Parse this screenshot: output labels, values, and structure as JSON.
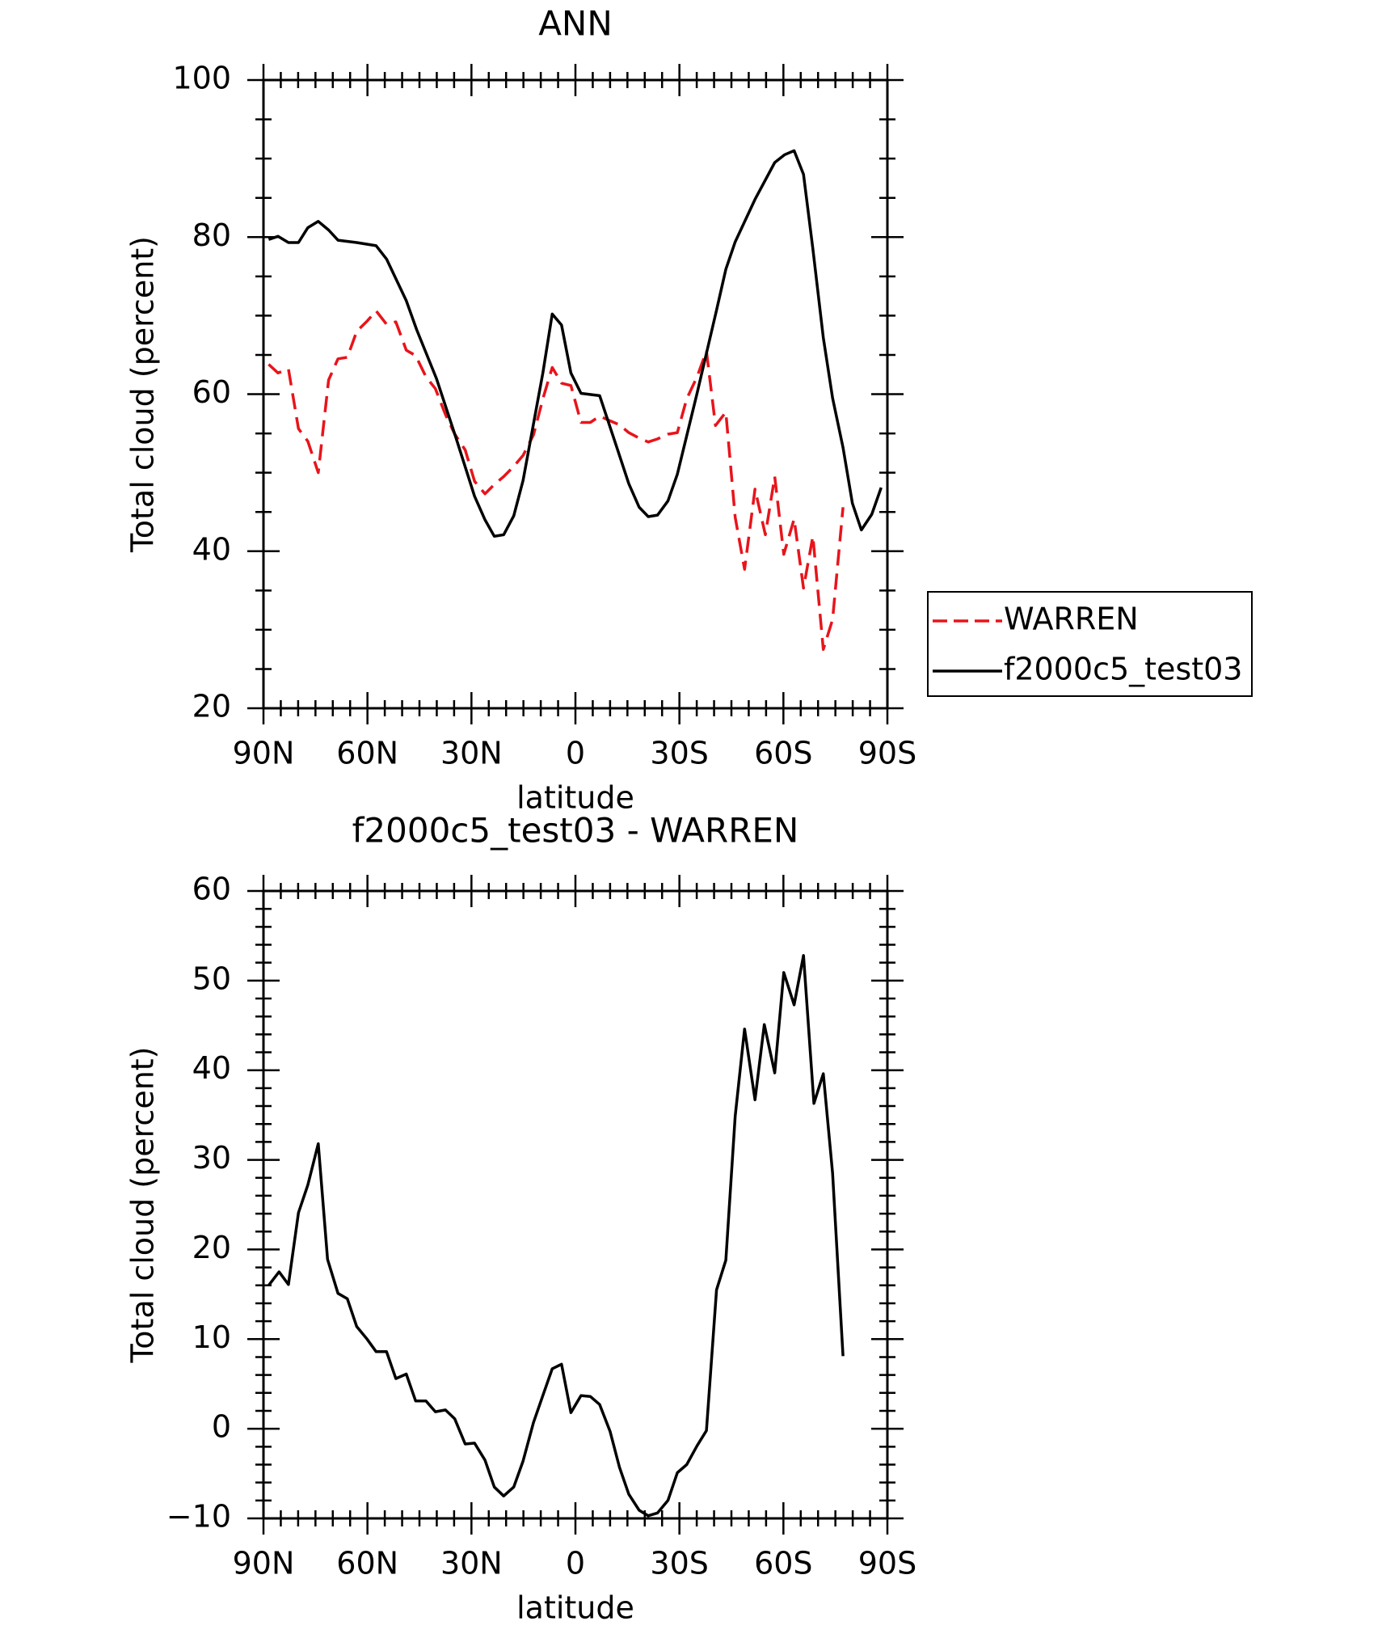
{
  "chart_data": [
    {
      "type": "line",
      "title": "ANN",
      "xlabel": "latitude",
      "ylabel": "Total cloud (percent)",
      "xlim": [
        90,
        -90
      ],
      "ylim": [
        20,
        100
      ],
      "xticks": [
        {
          "value": 90,
          "label": "90N"
        },
        {
          "value": 60,
          "label": "60N"
        },
        {
          "value": 30,
          "label": "30N"
        },
        0,
        {
          "value": -30,
          "label": "30S"
        },
        {
          "value": -60,
          "label": "60S"
        },
        {
          "value": -90,
          "label": "90S"
        }
      ],
      "yticks": [
        20,
        40,
        60,
        80,
        100
      ],
      "legend": "right",
      "series": [
        {
          "name": "WARREN",
          "color": "#e8141b",
          "dash": true,
          "x": [
            88.5,
            85.8,
            82.8,
            79.9,
            77.2,
            74.2,
            71.2,
            68.5,
            65.8,
            63.1,
            60.1,
            57.5,
            54.5,
            51.8,
            48.8,
            46.1,
            43.1,
            40.4,
            37.5,
            34.8,
            31.8,
            29.1,
            26.1,
            23.4,
            20.7,
            17.8,
            15.1,
            12.1,
            9.4,
            6.7,
            4.0,
            1.3,
            -1.6,
            -4.3,
            -7.0,
            -10.0,
            -12.7,
            -15.4,
            -18.4,
            -21.0,
            -23.7,
            -26.7,
            -29.4,
            -32.1,
            -35.1,
            -37.8,
            -40.4,
            -43.4,
            -46.1,
            -48.8,
            -51.8,
            -54.8,
            -57.5,
            -60.1,
            -63.1,
            -65.8,
            -68.5,
            -71.5,
            -74.2,
            -77.2
          ],
          "values": [
            63.8,
            62.7,
            63.2,
            55.6,
            54.0,
            50.0,
            61.8,
            64.5,
            64.7,
            68.0,
            69.3,
            70.6,
            68.9,
            69.2,
            65.6,
            64.9,
            62.2,
            60.7,
            57.4,
            54.9,
            52.9,
            48.9,
            47.3,
            48.5,
            49.5,
            50.8,
            52.2,
            54.8,
            59.4,
            63.4,
            61.4,
            61.1,
            56.4,
            56.4,
            57.2,
            56.6,
            56.1,
            55.1,
            54.4,
            53.9,
            54.3,
            54.9,
            55.1,
            59.4,
            62.2,
            65.5,
            56.0,
            57.7,
            44.3,
            37.7,
            47.9,
            42.1,
            49.5,
            39.6,
            44.1,
            35.3,
            41.9,
            27.5,
            31.3,
            45.6
          ]
        },
        {
          "name": "f2000c5_test03",
          "color": "#000000",
          "dash": false,
          "x": [
            88.5,
            85.8,
            82.8,
            79.9,
            77.2,
            74.2,
            71.2,
            68.5,
            63.1,
            57.5,
            54.5,
            48.8,
            45.8,
            40.1,
            34.5,
            29.1,
            26.1,
            23.4,
            20.7,
            17.8,
            15.1,
            9.4,
            6.7,
            4.0,
            1.3,
            -1.6,
            -7.0,
            -12.7,
            -15.4,
            -18.4,
            -21.0,
            -23.7,
            -26.7,
            -29.4,
            -35.1,
            -37.8,
            -40.7,
            -43.4,
            -46.1,
            -51.8,
            -57.5,
            -60.4,
            -63.1,
            -65.8,
            -68.5,
            -71.5,
            -74.2,
            -77.2,
            -79.9,
            -82.5,
            -85.5,
            -88.2
          ],
          "values": [
            79.7,
            80.1,
            79.3,
            79.3,
            81.2,
            82.0,
            80.9,
            79.6,
            79.3,
            78.9,
            77.2,
            71.9,
            68.2,
            62.0,
            54.5,
            47.0,
            44.0,
            41.9,
            42.1,
            44.5,
            49.0,
            62.7,
            70.2,
            68.8,
            62.7,
            60.1,
            59.8,
            52.2,
            48.6,
            45.6,
            44.4,
            44.6,
            46.4,
            49.8,
            60.1,
            65.2,
            70.7,
            75.9,
            79.4,
            84.8,
            89.5,
            90.5,
            91.0,
            88.0,
            78.5,
            67.2,
            59.5,
            53.2,
            46.1,
            42.7,
            44.7,
            48.1
          ]
        }
      ]
    },
    {
      "type": "line",
      "title": "f2000c5_test03 - WARREN",
      "xlabel": "latitude",
      "ylabel": "Total cloud (percent)",
      "xlim": [
        90,
        -90
      ],
      "ylim": [
        -10,
        60
      ],
      "xticks": [
        {
          "value": 90,
          "label": "90N"
        },
        {
          "value": 60,
          "label": "60N"
        },
        {
          "value": 30,
          "label": "30N"
        },
        0,
        {
          "value": -30,
          "label": "30S"
        },
        {
          "value": -60,
          "label": "60S"
        },
        {
          "value": -90,
          "label": "90S"
        }
      ],
      "yticks": [
        {
          "value": -10,
          "label": "−10"
        },
        0,
        10,
        20,
        30,
        40,
        50,
        60
      ],
      "series": [
        {
          "color": "#000000",
          "dash": false,
          "x": [
            88.5,
            85.5,
            82.8,
            79.9,
            77.2,
            74.2,
            71.5,
            68.5,
            65.8,
            63.1,
            60.1,
            57.5,
            54.5,
            51.8,
            48.8,
            46.1,
            43.1,
            40.4,
            37.5,
            34.8,
            31.8,
            29.1,
            26.1,
            23.4,
            20.7,
            17.8,
            15.1,
            12.1,
            9.4,
            6.7,
            4.0,
            1.3,
            -1.6,
            -4.3,
            -7.0,
            -10.0,
            -12.7,
            -15.4,
            -18.4,
            -21.0,
            -23.7,
            -26.7,
            -29.4,
            -32.1,
            -35.1,
            -37.8,
            -40.7,
            -43.4,
            -46.1,
            -48.8,
            -51.8,
            -54.5,
            -57.5,
            -60.1,
            -63.1,
            -65.8,
            -68.8,
            -71.5,
            -74.2,
            -77.2
          ],
          "values": [
            16.0,
            17.5,
            16.1,
            24.1,
            27.2,
            31.8,
            18.9,
            15.1,
            14.5,
            11.4,
            10.0,
            8.6,
            8.6,
            5.6,
            6.1,
            3.1,
            3.1,
            1.9,
            2.1,
            1.1,
            -1.7,
            -1.6,
            -3.5,
            -6.5,
            -7.5,
            -6.5,
            -3.6,
            0.7,
            3.7,
            6.7,
            7.2,
            1.8,
            3.7,
            3.6,
            2.7,
            -0.3,
            -4.3,
            -7.3,
            -9.1,
            -9.7,
            -9.4,
            -8.0,
            -4.9,
            -4.0,
            -1.9,
            -0.2,
            15.5,
            18.8,
            34.9,
            44.6,
            36.7,
            45.1,
            39.7,
            50.9,
            47.3,
            52.8,
            36.3,
            39.6,
            28.5,
            8.1
          ]
        }
      ]
    }
  ]
}
